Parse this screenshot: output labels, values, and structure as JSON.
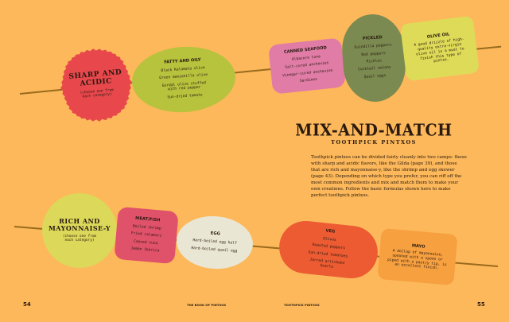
{
  "top": {
    "sharp": {
      "title": "SHARP AND ACIDIC",
      "note": "(choose one from each category)"
    },
    "fatty": {
      "title": "FATTY AND OILY",
      "items": [
        "Black Kalamata olive",
        "Green manzanilla olive",
        "Gordal olive stuffed with red pepper",
        "Sun-dried tomato"
      ]
    },
    "canned": {
      "title": "CANNED SEAFOOD",
      "items": [
        "Albacore tuna",
        "Salt-cured anchovies",
        "Vinegar-cured anchovies",
        "Sardines"
      ]
    },
    "pickled": {
      "title": "PICKLED",
      "items": [
        "Guindilla peppers",
        "Red peppers",
        "Pickles",
        "Cocktail onions",
        "Quail eggs"
      ]
    },
    "olive_oil": {
      "title": "OLIVE OIL",
      "text": "A good drizzle of high-quality extra-virgin olive oil is a must to finish this type of pintxo."
    }
  },
  "heading": {
    "title": "MIX-AND-MATCH",
    "subtitle": "TOOTHPICK PINTXOS",
    "body": "Toothpick pintxos can be divided fairly cleanly into two camps: those with sharp and acidic flavors, like the Gilda (page 39), and those that are rich and mayonnaise-y, like the shrimp and egg skewer (page 43). Depending on which type you prefer, you can riff off the most common ingredients and mix and match them to make your own creations. Follow the basic formulas shown here to make perfect toothpick pintxos."
  },
  "bottom": {
    "rich": {
      "title": "RICH AND MAYONNAISE-Y",
      "note": "(choose one from each category)"
    },
    "meat": {
      "title": "MEAT/FISH",
      "items": [
        "Boiled shrimp",
        "Fried calamari",
        "Canned tuna",
        "Jamón ibérico"
      ]
    },
    "egg": {
      "title": "EGG",
      "items": [
        "Hard-boiled egg half",
        "Hard-boiled quail egg"
      ]
    },
    "veg": {
      "title": "VEG",
      "items": [
        "Olives",
        "Roasted peppers",
        "Sun-dried tomatoes",
        "Jarred artichoke hearts"
      ]
    },
    "mayo": {
      "title": "MAYO",
      "text": "A dollop of mayonnaise, spooned with a spoon or piped with a pastry tip, is an excellent finish."
    }
  },
  "footer": {
    "left_page": "54",
    "left_title": "THE BOOK OF PINTXOS",
    "right_title": "TOOTHPICK PINTXOS",
    "right_page": "55"
  },
  "colors": {
    "background": "#fcb85a",
    "sharp": "#e8474c",
    "fatty": "#b7c23d",
    "canned": "#e07ca6",
    "pickled": "#7a8a50",
    "olive_oil": "#dedb58",
    "rich": "#dcd85a",
    "meat": "#e0516a",
    "egg": "#e9e6d4",
    "veg": "#ec5b32",
    "mayo": "#f6a040"
  }
}
